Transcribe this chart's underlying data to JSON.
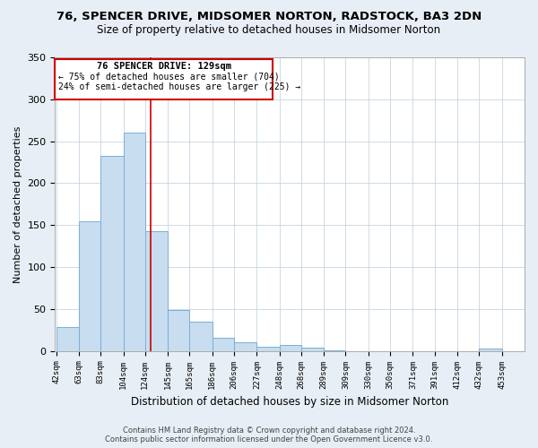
{
  "title": "76, SPENCER DRIVE, MIDSOMER NORTON, RADSTOCK, BA3 2DN",
  "subtitle": "Size of property relative to detached houses in Midsomer Norton",
  "xlabel": "Distribution of detached houses by size in Midsomer Norton",
  "ylabel": "Number of detached properties",
  "bin_labels": [
    "42sqm",
    "63sqm",
    "83sqm",
    "104sqm",
    "124sqm",
    "145sqm",
    "165sqm",
    "186sqm",
    "206sqm",
    "227sqm",
    "248sqm",
    "268sqm",
    "289sqm",
    "309sqm",
    "330sqm",
    "350sqm",
    "371sqm",
    "391sqm",
    "412sqm",
    "432sqm",
    "453sqm"
  ],
  "bin_edges": [
    42,
    63,
    83,
    104,
    124,
    145,
    165,
    186,
    206,
    227,
    248,
    268,
    289,
    309,
    330,
    350,
    371,
    391,
    412,
    432,
    453
  ],
  "bar_heights": [
    29,
    155,
    232,
    260,
    143,
    49,
    35,
    16,
    10,
    5,
    7,
    4,
    1,
    0,
    0,
    0,
    0,
    0,
    0,
    3
  ],
  "bar_color": "#c8ddef",
  "bar_edge_color": "#7aafd4",
  "vline_x": 129,
  "vline_color": "#cc0000",
  "annotation_line1": "76 SPENCER DRIVE: 129sqm",
  "annotation_line2": "← 75% of detached houses are smaller (704)",
  "annotation_line3": "24% of semi-detached houses are larger (225) →",
  "annotation_box_color": "#cc0000",
  "ylim": [
    0,
    350
  ],
  "yticks": [
    0,
    50,
    100,
    150,
    200,
    250,
    300,
    350
  ],
  "footer_line1": "Contains HM Land Registry data © Crown copyright and database right 2024.",
  "footer_line2": "Contains public sector information licensed under the Open Government Licence v3.0.",
  "background_color": "#e8eef5",
  "plot_background_color": "#ffffff"
}
